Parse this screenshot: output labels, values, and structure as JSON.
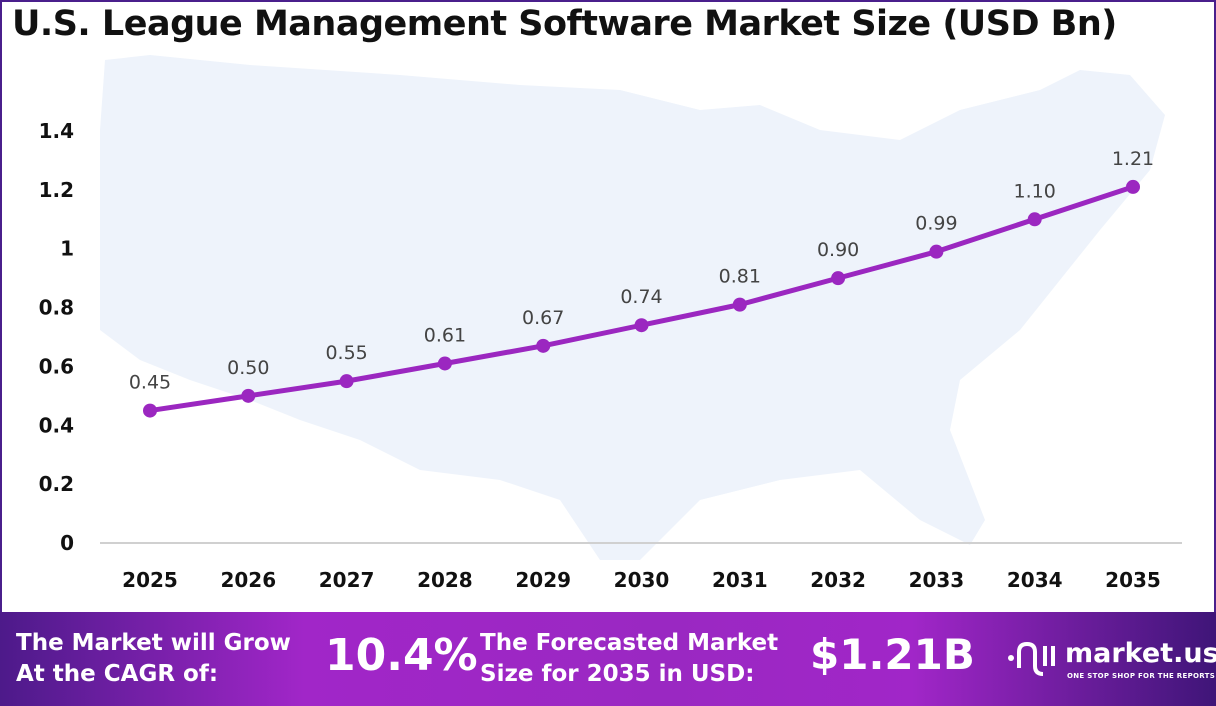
{
  "chart_data": {
    "type": "line",
    "title": "U.S. League Management Software Market Size (USD Bn)",
    "categories": [
      "2025",
      "2026",
      "2027",
      "2028",
      "2029",
      "2030",
      "2031",
      "2032",
      "2033",
      "2034",
      "2035"
    ],
    "values": [
      0.45,
      0.5,
      0.55,
      0.61,
      0.67,
      0.74,
      0.81,
      0.9,
      0.99,
      1.1,
      1.21
    ],
    "data_labels": [
      "0.45",
      "0.50",
      "0.55",
      "0.61",
      "0.67",
      "0.74",
      "0.81",
      "0.90",
      "0.99",
      "1.10",
      "1.21"
    ],
    "yticks": [
      "0",
      "0.2",
      "0.4",
      "0.6",
      "0.8",
      "1",
      "1.2",
      "1.4"
    ],
    "ylim": [
      0,
      1.4
    ],
    "grid": false,
    "line_color": "#9b27c0"
  },
  "footer": {
    "cagr_label_1": "The Market will Grow",
    "cagr_label_2": "At the CAGR of:",
    "cagr_value": "10.4%",
    "forecast_label_1": "The Forecasted Market",
    "forecast_label_2": "Size for 2035 in USD:",
    "forecast_value": "$1.21B",
    "brand": "market.us",
    "tagline": "ONE STOP SHOP FOR THE REPORTS"
  }
}
